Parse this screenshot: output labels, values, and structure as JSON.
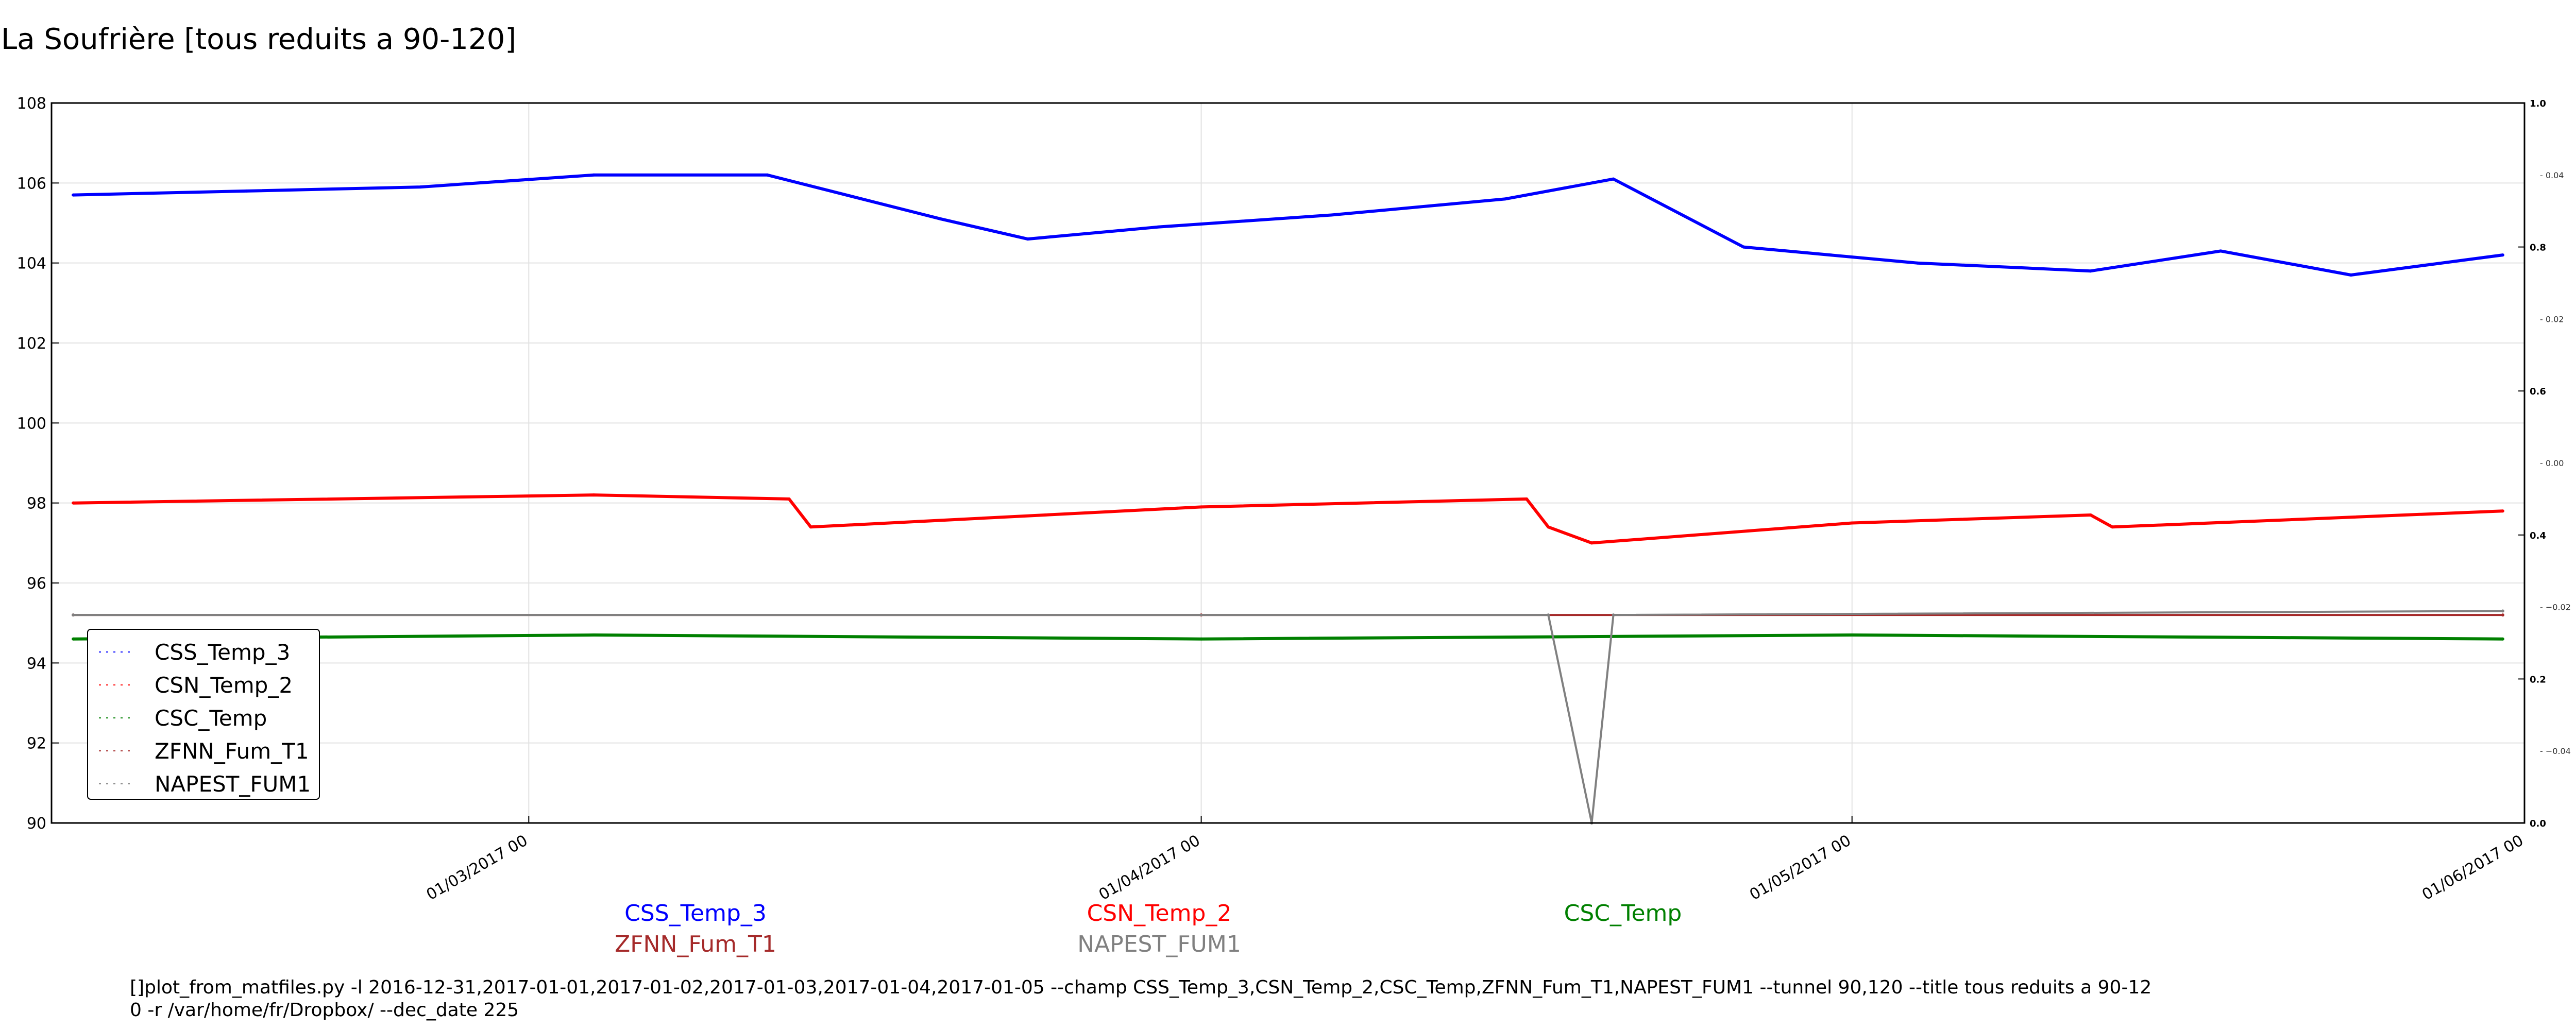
{
  "title": "La Soufrière [tous reduits a 90-120]",
  "colors": {
    "CSS_Temp_3": "#0000ff",
    "CSN_Temp_2": "#ff0000",
    "CSC_Temp": "#008000",
    "ZFNN_Fum_T1": "#a52a2a",
    "NAPEST_FUM1": "#808080"
  },
  "chart_data": {
    "type": "line",
    "x_type": "date",
    "xlim": [
      "2017-02-07",
      "2017-06-01"
    ],
    "ylim": [
      90,
      108
    ],
    "yticks": [
      "90",
      "92",
      "94",
      "96",
      "98",
      "100",
      "102",
      "104",
      "106",
      "108"
    ],
    "xticks": [
      {
        "date": "2017-03-01",
        "label": "01/03/2017 00"
      },
      {
        "date": "2017-04-01",
        "label": "01/04/2017 00"
      },
      {
        "date": "2017-05-01",
        "label": "01/05/2017 00"
      },
      {
        "date": "2017-06-01",
        "label": "01/06/2017 00"
      }
    ],
    "right_axis_outer": [
      "0.0",
      "0.2",
      "0.4",
      "0.6",
      "0.8",
      "1.0"
    ],
    "right_axis_inner": [
      "−0.04",
      "−0.02",
      "0.00",
      "0.02",
      "0.04"
    ],
    "grid": true,
    "legend_placement": "lower-left",
    "legend": [
      "CSS_Temp_3",
      "CSN_Temp_2",
      "CSC_Temp",
      "ZFNN_Fum_T1",
      "NAPEST_FUM1"
    ],
    "series": [
      {
        "name": "CSS_Temp_3",
        "x": [
          "2017-02-08",
          "2017-02-16",
          "2017-02-24",
          "2017-03-04",
          "2017-03-12",
          "2017-03-20",
          "2017-03-24",
          "2017-03-30",
          "2017-04-07",
          "2017-04-15",
          "2017-04-20",
          "2017-04-26",
          "2017-05-04",
          "2017-05-12",
          "2017-05-18",
          "2017-05-24",
          "2017-05-31"
        ],
        "values": [
          105.7,
          105.8,
          105.9,
          106.2,
          106.2,
          105.1,
          104.6,
          104.9,
          105.2,
          105.6,
          106.1,
          104.4,
          104.0,
          103.8,
          104.3,
          103.7,
          104.2
        ]
      },
      {
        "name": "CSN_Temp_2",
        "x": [
          "2017-02-08",
          "2017-03-04",
          "2017-03-13",
          "2017-03-14",
          "2017-04-01",
          "2017-04-16",
          "2017-04-17",
          "2017-04-19",
          "2017-05-01",
          "2017-05-12",
          "2017-05-13",
          "2017-05-31"
        ],
        "values": [
          98.0,
          98.2,
          98.1,
          97.4,
          97.9,
          98.1,
          97.4,
          97.0,
          97.5,
          97.7,
          97.4,
          97.8
        ]
      },
      {
        "name": "CSC_Temp",
        "x": [
          "2017-02-08",
          "2017-03-04",
          "2017-04-01",
          "2017-05-01",
          "2017-05-31"
        ],
        "values": [
          94.6,
          94.7,
          94.6,
          94.7,
          94.6
        ]
      },
      {
        "name": "ZFNN_Fum_T1",
        "x": [
          "2017-02-08",
          "2017-04-01",
          "2017-05-31"
        ],
        "values": [
          95.2,
          95.2,
          95.2
        ]
      },
      {
        "name": "NAPEST_FUM1",
        "x": [
          "2017-02-08",
          "2017-04-17",
          "2017-04-19",
          "2017-04-20",
          "2017-05-31"
        ],
        "values": [
          95.2,
          95.2,
          90.0,
          95.2,
          95.3
        ]
      }
    ],
    "bottom_labels": [
      "CSS_Temp_3",
      "CSN_Temp_2",
      "CSC_Temp",
      "ZFNN_Fum_T1",
      "NAPEST_FUM1"
    ]
  },
  "command": "[]plot_from_matfiles.py -l 2016-12-31,2017-01-01,2017-01-02,2017-01-03,2017-01-04,2017-01-05 --champ CSS_Temp_3,CSN_Temp_2,CSC_Temp,ZFNN_Fum_T1,NAPEST_FUM1 --tunnel 90,120 --title tous reduits a 90-12\n0 -r /var/home/fr/Dropbox/ --dec_date 225"
}
